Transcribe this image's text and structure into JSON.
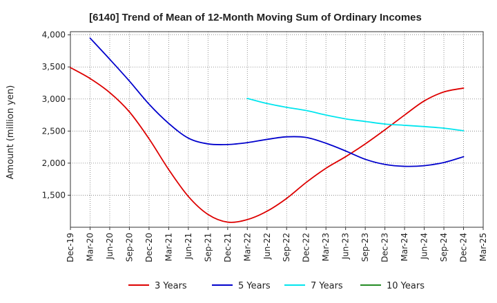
{
  "chart_data": {
    "type": "line",
    "title": "[6140]  Trend of Mean of 12-Month Moving Sum of Ordinary Incomes",
    "xlabel": "",
    "ylabel": "Amount (million yen)",
    "ylim": [
      1000,
      4050
    ],
    "yticks": [
      1500,
      2000,
      2500,
      3000,
      3500,
      4000
    ],
    "ytick_labels": [
      "1,500",
      "2,000",
      "2,500",
      "3,000",
      "3,500",
      "4,000"
    ],
    "categories": [
      "Dec-19",
      "Mar-20",
      "Jun-20",
      "Sep-20",
      "Dec-20",
      "Mar-21",
      "Jun-21",
      "Sep-21",
      "Dec-21",
      "Mar-22",
      "Jun-22",
      "Sep-22",
      "Dec-22",
      "Mar-23",
      "Jun-23",
      "Sep-23",
      "Dec-23",
      "Mar-24",
      "Jun-24",
      "Sep-24",
      "Dec-24",
      "Mar-25"
    ],
    "grid": true,
    "legend_position": "bottom",
    "series": [
      {
        "name": "3 Years",
        "color": "#dd0000",
        "values": [
          3490,
          3320,
          3100,
          2800,
          2380,
          1900,
          1480,
          1200,
          1080,
          1120,
          1250,
          1450,
          1700,
          1920,
          2100,
          2300,
          2520,
          2750,
          2970,
          3110,
          3170,
          null
        ]
      },
      {
        "name": "5 Years",
        "color": "#0000cc",
        "values": [
          null,
          3950,
          3620,
          3280,
          2920,
          2620,
          2390,
          2300,
          2290,
          2320,
          2370,
          2410,
          2400,
          2310,
          2190,
          2060,
          1980,
          1950,
          1960,
          2010,
          2100,
          null
        ]
      },
      {
        "name": "7 Years",
        "color": "#00e5ee",
        "values": [
          null,
          null,
          null,
          null,
          null,
          null,
          null,
          null,
          null,
          3010,
          2930,
          2870,
          2820,
          2750,
          2690,
          2650,
          2610,
          2590,
          2570,
          2545,
          2505,
          null
        ]
      },
      {
        "name": "10 Years",
        "color": "#228b22",
        "values": [
          null,
          null,
          null,
          null,
          null,
          null,
          null,
          null,
          null,
          null,
          null,
          null,
          null,
          null,
          null,
          null,
          null,
          null,
          null,
          null,
          null,
          null
        ]
      }
    ]
  }
}
